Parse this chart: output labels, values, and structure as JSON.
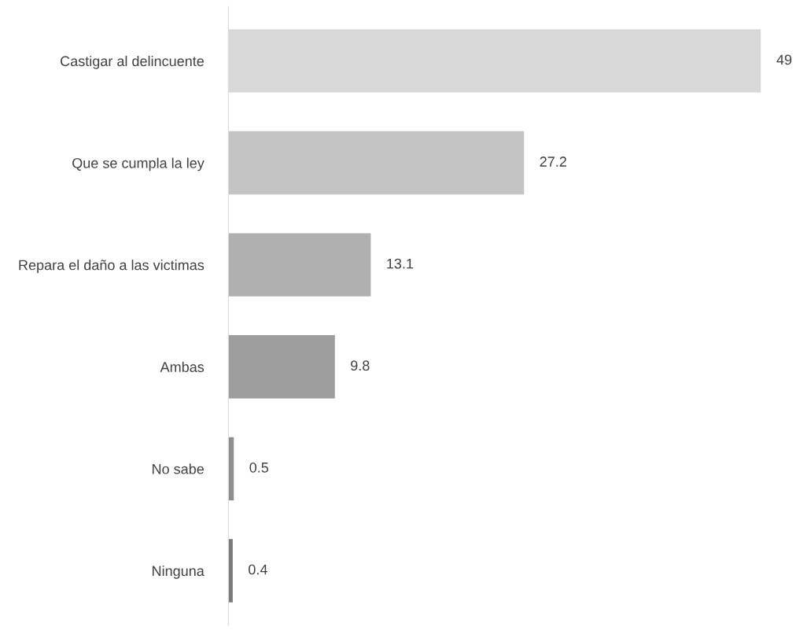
{
  "chart_data": {
    "type": "bar",
    "orientation": "horizontal",
    "categories": [
      "Castigar al delincuente",
      "Que se cumpla la ley",
      "Repara el daño a las victimas",
      "Ambas",
      "No sabe",
      "Ninguna"
    ],
    "values": [
      49,
      27.2,
      13.1,
      9.8,
      0.5,
      0.4
    ],
    "colors": [
      "#d8d8d8",
      "#c4c4c4",
      "#b0b0b0",
      "#9e9e9e",
      "#8e8e8e",
      "#7a7a7a"
    ],
    "data_labels": true,
    "grid": false,
    "legend": false
  }
}
